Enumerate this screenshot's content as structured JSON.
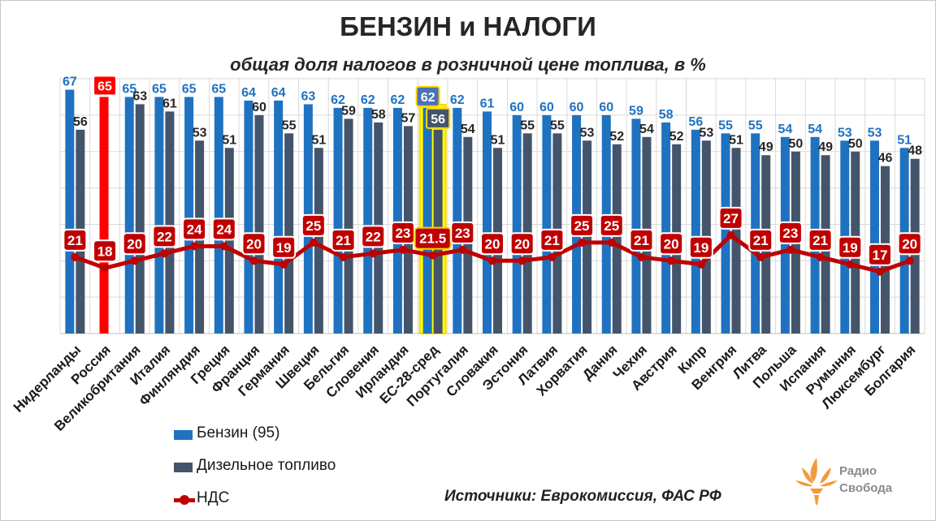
{
  "header": {
    "title": "БЕНЗИН и НАЛОГИ",
    "subtitle": "общая доля налогов в розничной цене топлива, в %"
  },
  "chart_data": {
    "type": "bar",
    "title": "БЕНЗИН и НАЛОГИ",
    "subtitle": "общая доля налогов в розничной цене топлива, в %",
    "xlabel": "",
    "ylabel": "",
    "ylim": [
      0,
      70
    ],
    "grid": true,
    "categories": [
      "Нидерланды",
      "Россия",
      "Великобритания",
      "Италия",
      "Финляндия",
      "Греция",
      "Франция",
      "Германия",
      "Швеция",
      "Бельгия",
      "Словения",
      "Ирландия",
      "ЕС-28-сред",
      "Португалия",
      "Словакия",
      "Эстония",
      "Латвия",
      "Хорватия",
      "Дания",
      "Чехия",
      "Австрия",
      "Кипр",
      "Венгрия",
      "Литва",
      "Польша",
      "Испания",
      "Румыния",
      "Люксембург",
      "Болгария"
    ],
    "series": [
      {
        "name": "Бензин (95)",
        "type": "bar",
        "color": "#1f72c0",
        "values": [
          67,
          65,
          65,
          65,
          65,
          65,
          64,
          64,
          63,
          62,
          62,
          62,
          62,
          62,
          61,
          60,
          60,
          60,
          60,
          59,
          58,
          56,
          55,
          55,
          54,
          54,
          53,
          53,
          51
        ],
        "labels": [
          "67",
          "65",
          "65",
          "65",
          "65",
          "65",
          "64",
          "64",
          "63",
          "62",
          "62",
          "62",
          "62",
          "62",
          "61",
          "60",
          "60",
          "60",
          "60",
          "59",
          "58",
          "56",
          "55",
          "55",
          "54",
          "54",
          "53",
          "53",
          "51"
        ]
      },
      {
        "name": "Дизельное топливо",
        "type": "bar",
        "color": "#44546a",
        "values": [
          56,
          null,
          63,
          61,
          53,
          51,
          60,
          55,
          51,
          59,
          58,
          57,
          56,
          54,
          51,
          55,
          55,
          53,
          52,
          54,
          52,
          53,
          51,
          49,
          50,
          49,
          50,
          46,
          48
        ],
        "labels": [
          "56",
          "",
          "63",
          "61",
          "53",
          "51",
          "60",
          "55",
          "51",
          "59",
          "58",
          "57",
          "56",
          "54",
          "51",
          "55",
          "55",
          "53",
          "52",
          "54",
          "52",
          "53",
          "51",
          "49",
          "50",
          "49",
          "50",
          "46",
          "48"
        ]
      },
      {
        "name": "НДС",
        "type": "line",
        "color": "#c00000",
        "values": [
          21,
          18,
          20,
          22,
          24,
          24,
          20,
          19,
          25,
          21,
          22,
          23,
          21.5,
          23,
          20,
          20,
          21,
          25,
          25,
          21,
          20,
          19,
          27,
          21,
          23,
          21,
          19,
          17,
          20
        ],
        "labels": [
          "21",
          "18",
          "20",
          "22",
          "24",
          "24",
          "20",
          "19",
          "25",
          "21",
          "22",
          "23",
          "21.5",
          "23",
          "20",
          "20",
          "21",
          "25",
          "25",
          "21",
          "20",
          "19",
          "27",
          "21",
          "23",
          "21",
          "19",
          "17",
          "20"
        ]
      }
    ],
    "highlights": {
      "russia_index": 1,
      "russia_color": "#ff0000",
      "eu_avg_index": 12,
      "eu_avg_fill": "#ffff00",
      "eu_avg_border": "#ffd400"
    },
    "legend": {
      "position": "bottom-left"
    }
  },
  "legend": {
    "items": [
      {
        "label": "Бензин (95)",
        "color": "#1f72c0"
      },
      {
        "label": "Дизельное топливо",
        "color": "#44546a"
      },
      {
        "label": "НДС",
        "color": "#c00000"
      }
    ]
  },
  "footer": {
    "sources": "Источники:  Еврокомиссия, ФАС РФ",
    "logo_line1": "Радио",
    "logo_line2": "Свобода"
  },
  "colors": {
    "gasoline": "#1f72c0",
    "diesel": "#44546a",
    "vat": "#c00000",
    "russia": "#ff0000",
    "grid": "#d9d9d9"
  }
}
